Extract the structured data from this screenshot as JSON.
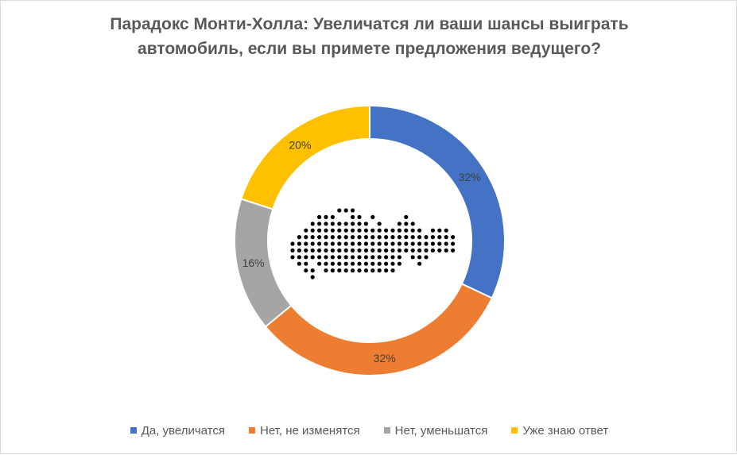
{
  "chart_data": {
    "type": "donut",
    "title": "Парадокс Монти-Холла: Увеличатся ли ваши шансы выиграть автомобиль, если вы примете предложения ведущего?",
    "title_lines": [
      "Парадокс Монти-Холла: Увеличатся ли ваши шансы выиграть",
      "автомобиль, если вы примете предложения ведущего?"
    ],
    "categories": [
      "Да, увеличатся",
      "Нет, не изменятся",
      "Нет, уменьшатся",
      "Уже знаю ответ"
    ],
    "values": [
      32,
      32,
      16,
      20
    ],
    "labels": [
      "32%",
      "32%",
      "16%",
      "20%"
    ],
    "colors": [
      "#4472c4",
      "#ed7d31",
      "#a5a5a5",
      "#ffc000"
    ],
    "start_angle_deg": 0,
    "direction": "clockwise",
    "legend_position": "bottom",
    "center_graphic": "car-dots-icon"
  }
}
